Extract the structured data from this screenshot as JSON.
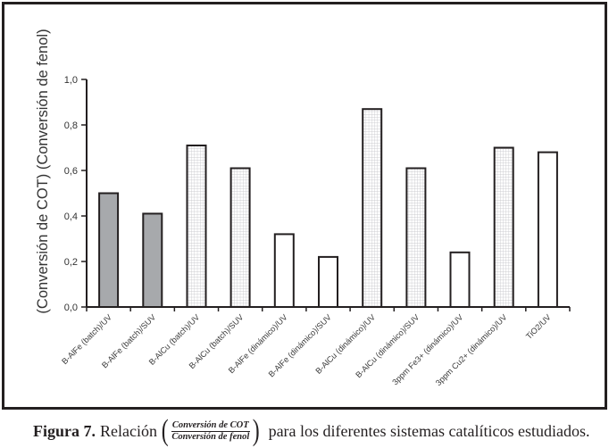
{
  "chart_data": {
    "type": "bar",
    "title": "",
    "ylabel": "(Conversión de COT) (Conversión de fenol)",
    "xlabel": "",
    "ylim": [
      0,
      1.0
    ],
    "yticks": [
      0.0,
      0.2,
      0.4,
      0.6,
      0.8,
      1.0
    ],
    "ytick_labels": [
      "0,0",
      "0,2",
      "0,4",
      "0,6",
      "0,8",
      "1,0"
    ],
    "grid": false,
    "legend": "none",
    "categories": [
      "B-AlFe (batch)/UV",
      "B-AlFe (batch)/SUV",
      "B-AlCu (batch)/UV",
      "B-AlCu (batch)/SUV",
      "B-AlFe (dinámico)/UV",
      "B-AlFe (dinámico)/SUV",
      "B-AlCu (dinámico)/UV",
      "B-AlCu (dinámico)/SUV",
      "3ppm Fe3+ (dinámico)/UV",
      "3ppm Cu2+ (dinámico)/UV",
      "TiO2/UV"
    ],
    "values": [
      0.5,
      0.41,
      0.71,
      0.61,
      0.32,
      0.22,
      0.87,
      0.61,
      0.24,
      0.7,
      0.68
    ],
    "fills": [
      "gray",
      "gray",
      "grid",
      "grid",
      "white",
      "white",
      "grid",
      "grid",
      "white",
      "grid",
      "white"
    ]
  },
  "colors": {
    "frame": "#231f20",
    "axis": "#231f20",
    "bar_gray": "#a7a9ac",
    "bar_white": "#ffffff",
    "grid_line": "#c8c8cc"
  },
  "caption": {
    "figure_label": "Figura 7.",
    "relation_word": "Relación",
    "fraction_numerator": "Conversión de COT",
    "fraction_denominator": "Conversión de fenol",
    "rest": "para los diferentes sistemas catalíticos estudiados."
  }
}
